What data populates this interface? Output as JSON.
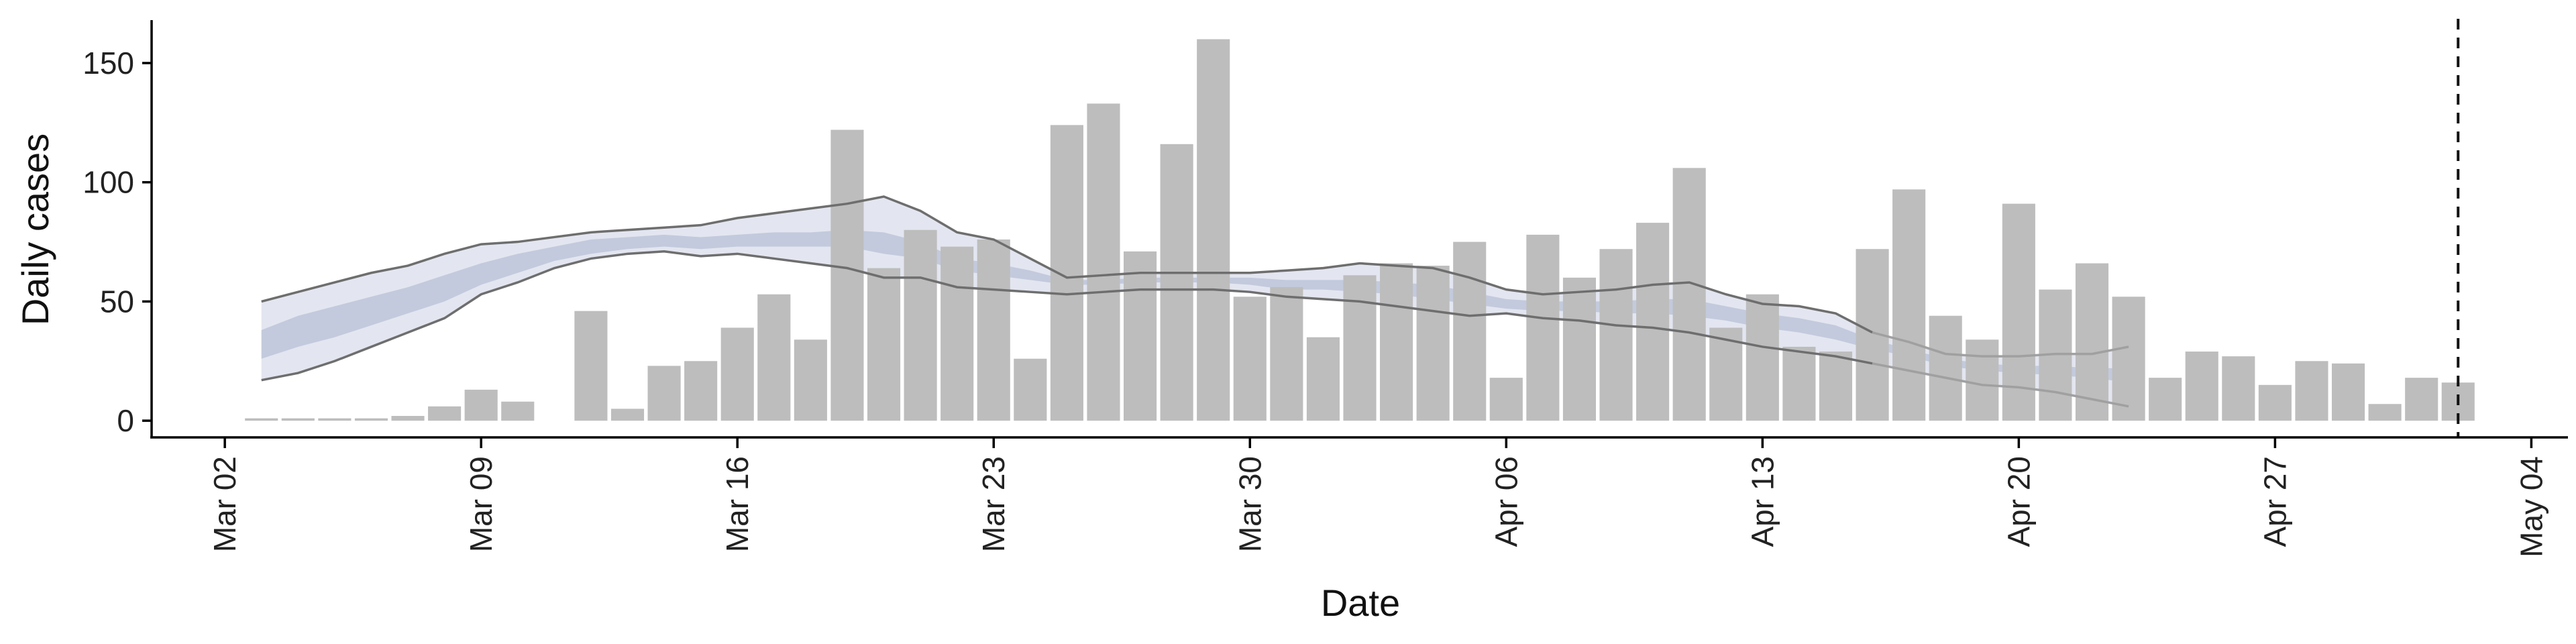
{
  "chart_data": {
    "type": "bar",
    "title": "",
    "xlabel": "Date",
    "ylabel": "Daily cases",
    "x_ticks": [
      "Mar 02",
      "Mar 09",
      "Mar 16",
      "Mar 23",
      "Mar 30",
      "Apr 06",
      "Apr 13",
      "Apr 20",
      "Apr 27",
      "May 04"
    ],
    "x_tick_dates": [
      "2020-03-02",
      "2020-03-09",
      "2020-03-16",
      "2020-03-23",
      "2020-03-30",
      "2020-04-06",
      "2020-04-13",
      "2020-04-20",
      "2020-04-27",
      "2020-05-04"
    ],
    "y_ticks": [
      0,
      50,
      100,
      150
    ],
    "xlim": [
      "2020-02-29",
      "2020-05-05"
    ],
    "ylim": [
      -7,
      168
    ],
    "grid": false,
    "colors": {
      "bars": "#bdbdbd",
      "band_outer": "#e3e6f0",
      "band_inner": "#c3cadd",
      "bound_lines": "#6e6e6e",
      "reference_line": "#111111"
    },
    "reference_line": {
      "date": "2020-05-02",
      "style": "dashed"
    },
    "bars": {
      "start_date": "2020-03-03",
      "values": [
        1,
        1,
        1,
        1,
        2,
        6,
        13,
        8,
        0,
        46,
        5,
        23,
        25,
        39,
        53,
        34,
        122,
        64,
        80,
        73,
        76,
        26,
        124,
        133,
        71,
        116,
        160,
        52,
        56,
        35,
        61,
        66,
        65,
        75,
        18,
        78,
        60,
        72,
        83,
        106,
        39,
        53,
        31,
        29,
        72,
        97,
        44,
        34,
        91,
        55,
        66,
        52,
        18,
        29,
        27,
        15,
        25,
        24,
        7,
        18,
        16
      ]
    },
    "bands": [
      {
        "start_date": "2020-03-03",
        "outer_upper": [
          50,
          54,
          58,
          62,
          65,
          70,
          74,
          75,
          77,
          79,
          80,
          81,
          82,
          85,
          87,
          89,
          91,
          94,
          88,
          79,
          76,
          68,
          60,
          61,
          62,
          62,
          62,
          62,
          63,
          64,
          66,
          65,
          64,
          60,
          55,
          53,
          54,
          55,
          57,
          58,
          53,
          49,
          48,
          45,
          37,
          33,
          28,
          27,
          27,
          28,
          28,
          31
        ],
        "outer_lower": [
          17,
          20,
          25,
          31,
          37,
          43,
          53,
          58,
          64,
          68,
          70,
          71,
          69,
          70,
          68,
          66,
          64,
          60,
          60,
          56,
          55,
          54,
          53,
          54,
          55,
          55,
          55,
          54,
          52,
          51,
          50,
          48,
          46,
          44,
          45,
          43,
          42,
          40,
          39,
          37,
          34,
          31,
          29,
          27,
          24,
          21,
          18,
          15,
          14,
          12,
          9,
          6
        ],
        "inner_upper": [
          38,
          44,
          48,
          52,
          56,
          61,
          66,
          70,
          73,
          76,
          77,
          78,
          77,
          78,
          79,
          79,
          80,
          79,
          75,
          68,
          66,
          63,
          59,
          59,
          60,
          60,
          60,
          60,
          59,
          59,
          59,
          58,
          57,
          54,
          51,
          50,
          50,
          50,
          51,
          51,
          48,
          45,
          43,
          40,
          34,
          30,
          26,
          24,
          23,
          23,
          22,
          22
        ],
        "inner_upper_end_date": "2020-04-23",
        "inner_lower": [
          26,
          31,
          35,
          40,
          45,
          50,
          57,
          62,
          67,
          70,
          72,
          73,
          72,
          73,
          73,
          73,
          73,
          70,
          68,
          63,
          61,
          59,
          57,
          57,
          58,
          58,
          58,
          57,
          55,
          55,
          54,
          53,
          51,
          49,
          47,
          46,
          46,
          45,
          45,
          44,
          42,
          39,
          37,
          34,
          30,
          27,
          23,
          21,
          20,
          19,
          18,
          16
        ]
      }
    ],
    "annotations": []
  }
}
